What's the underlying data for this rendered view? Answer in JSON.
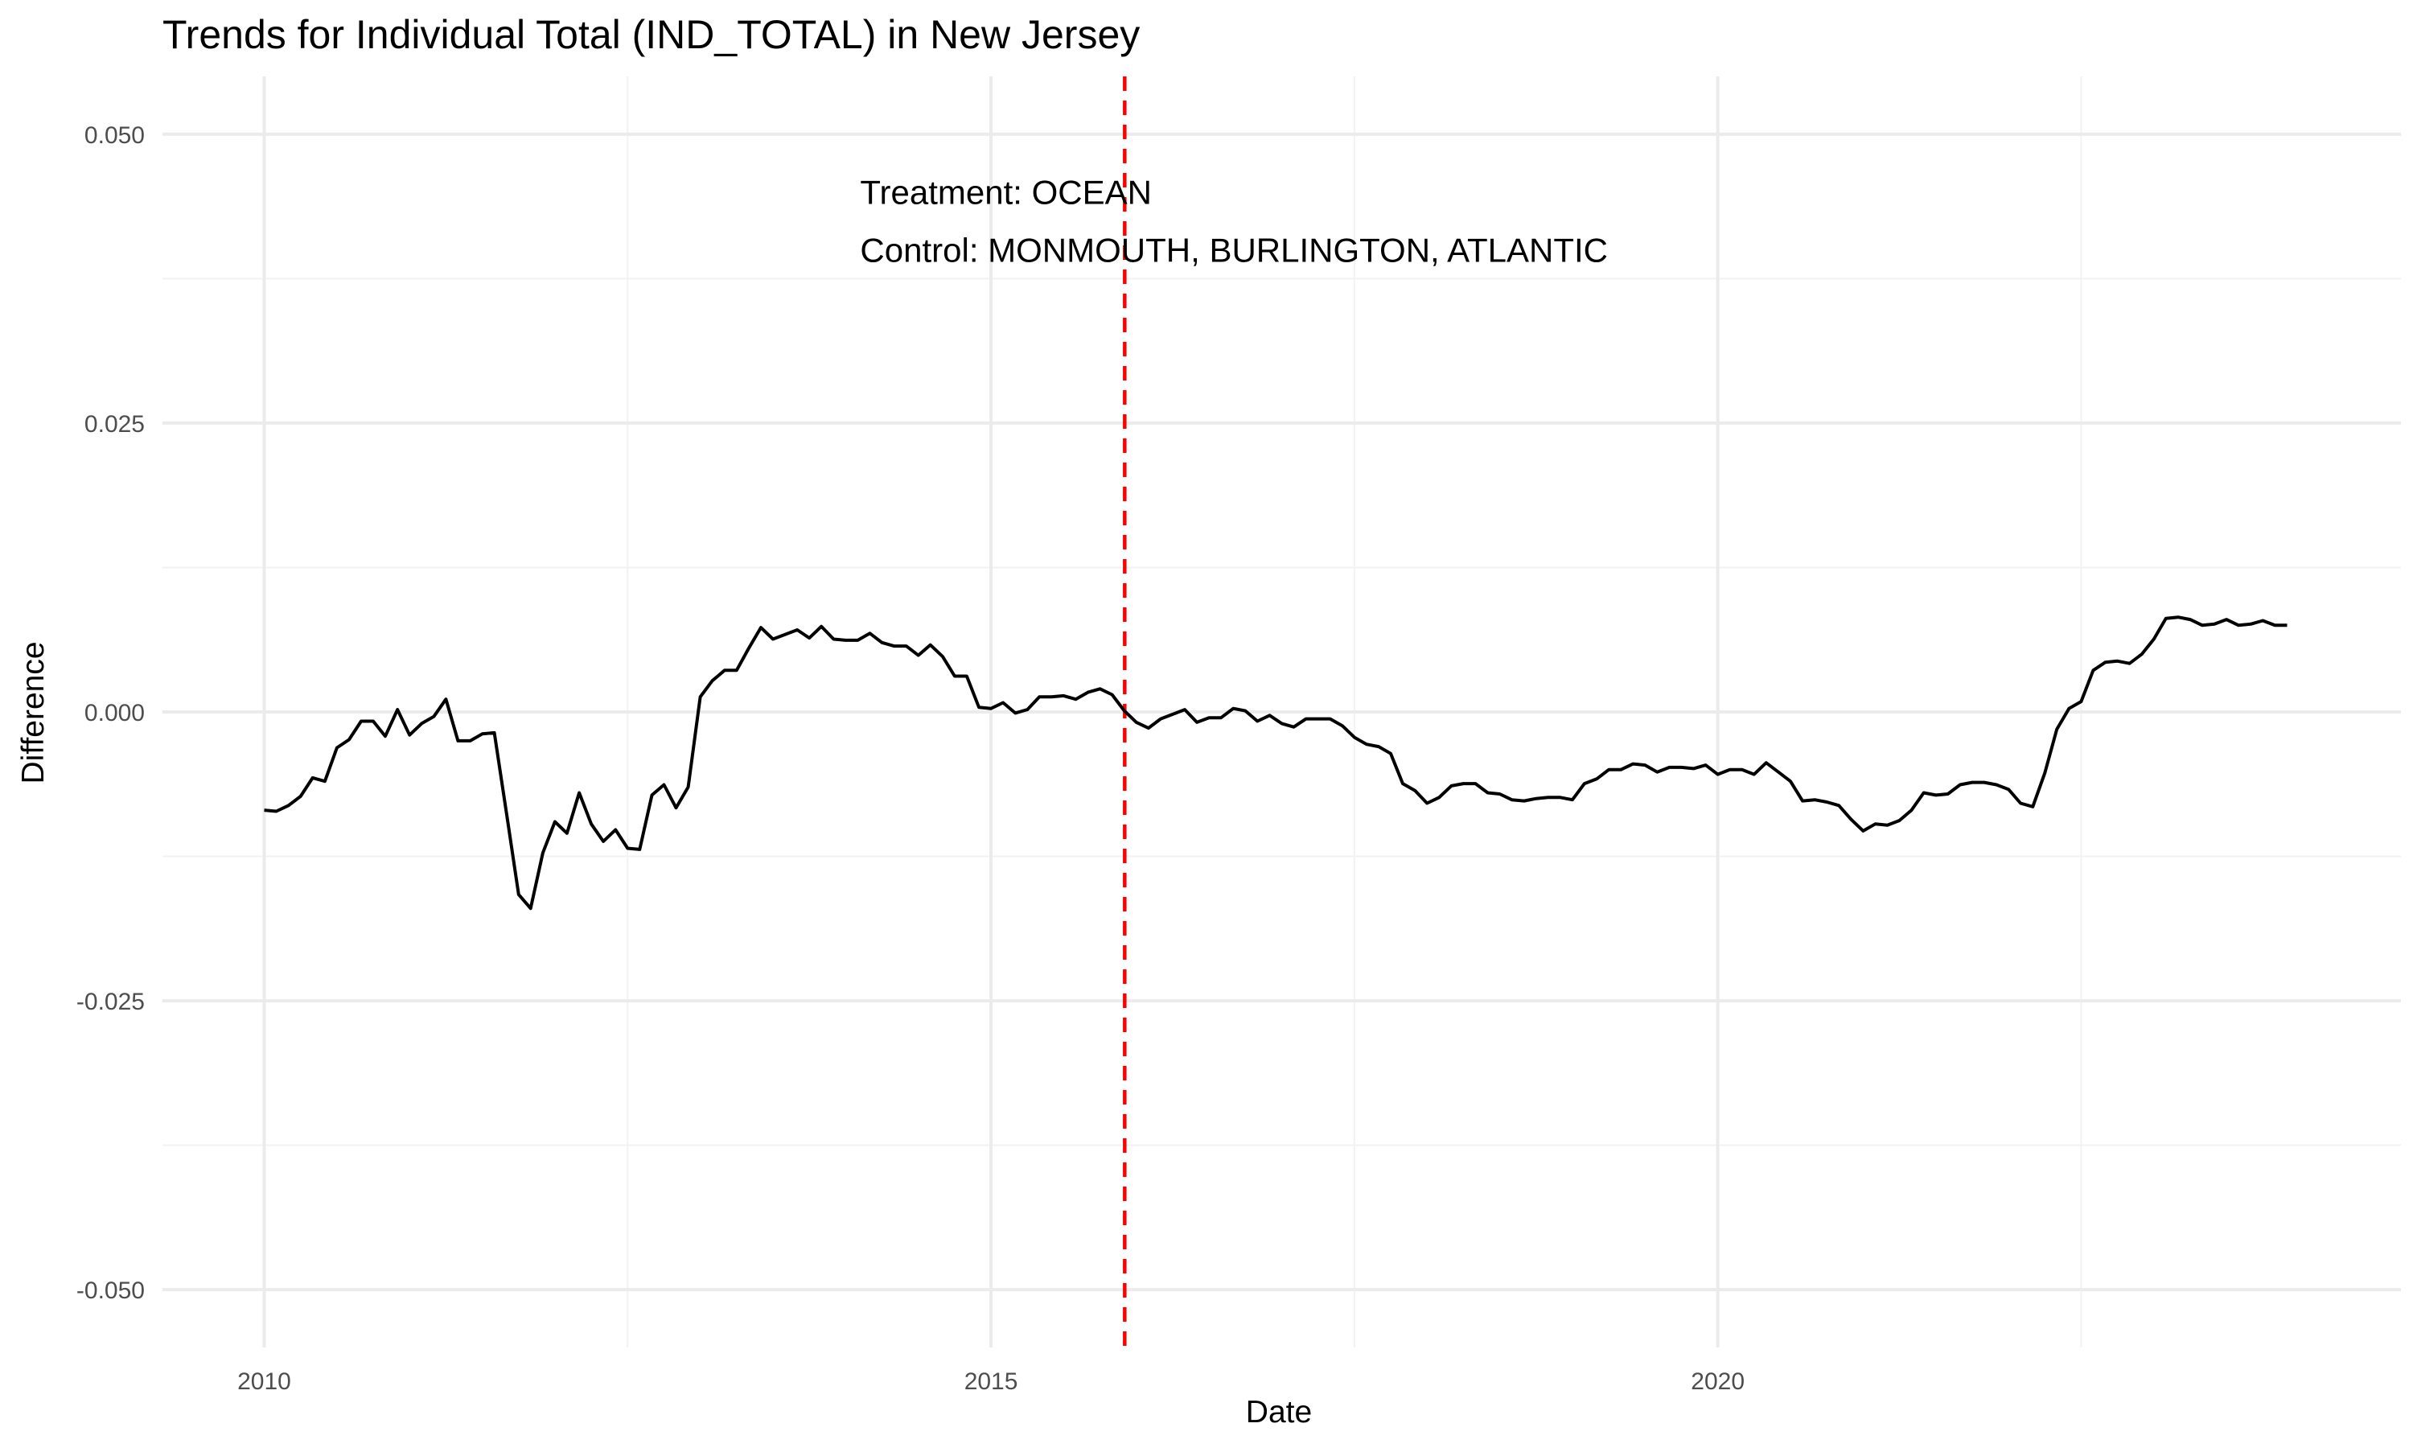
{
  "chart_data": {
    "type": "line",
    "title": "Trends for Individual Total (IND_TOTAL) in New Jersey",
    "xlabel": "Date",
    "ylabel": "Difference",
    "x_ticks": [
      2010,
      2015,
      2020
    ],
    "x_tick_labels": [
      "2010",
      "2015",
      "2020"
    ],
    "y_ticks": [
      -0.05,
      -0.025,
      0,
      0.025,
      0.05
    ],
    "y_tick_labels": [
      "-0.050",
      "-0.025",
      "0.000",
      "0.025",
      "0.050"
    ],
    "xlim": [
      2009.3,
      2024.7
    ],
    "ylim": [
      -0.055,
      0.055
    ],
    "grid": true,
    "legend": "none",
    "treatment_date": 2015.92,
    "line_color": "#000000",
    "treatment_line_color": "#ff0000",
    "annotations": [
      {
        "text": "Treatment: OCEAN",
        "x": 2014.1,
        "y": 0.045
      },
      {
        "text": "Control: MONMOUTH, BURLINGTON, ATLANTIC",
        "x": 2014.1,
        "y": 0.04
      }
    ],
    "series": [
      {
        "x": [
          2010.0,
          2010.083,
          2010.167,
          2010.25,
          2010.333,
          2010.417,
          2010.5,
          2010.583,
          2010.667,
          2010.75,
          2010.833,
          2010.917,
          2011.0,
          2011.083,
          2011.167,
          2011.25,
          2011.333,
          2011.417,
          2011.5,
          2011.583,
          2011.667,
          2011.75,
          2011.833,
          2011.917,
          2012.0,
          2012.083,
          2012.167,
          2012.25,
          2012.333,
          2012.417,
          2012.5,
          2012.583,
          2012.667,
          2012.75,
          2012.833,
          2012.917,
          2013.0,
          2013.083,
          2013.167,
          2013.25,
          2013.333,
          2013.417,
          2013.5,
          2013.583,
          2013.667,
          2013.75,
          2013.833,
          2013.917,
          2014.0,
          2014.083,
          2014.167,
          2014.25,
          2014.333,
          2014.417,
          2014.5,
          2014.583,
          2014.667,
          2014.75,
          2014.833,
          2014.917,
          2015.0,
          2015.083,
          2015.167,
          2015.25,
          2015.333,
          2015.417,
          2015.5,
          2015.583,
          2015.667,
          2015.75,
          2015.833,
          2015.917,
          2016.0,
          2016.083,
          2016.167,
          2016.25,
          2016.333,
          2016.417,
          2016.5,
          2016.583,
          2016.667,
          2016.75,
          2016.833,
          2016.917,
          2017.0,
          2017.083,
          2017.167,
          2017.25,
          2017.333,
          2017.417,
          2017.5,
          2017.583,
          2017.667,
          2017.75,
          2017.833,
          2017.917,
          2018.0,
          2018.083,
          2018.167,
          2018.25,
          2018.333,
          2018.417,
          2018.5,
          2018.583,
          2018.667,
          2018.75,
          2018.833,
          2018.917,
          2019.0,
          2019.083,
          2019.167,
          2019.25,
          2019.333,
          2019.417,
          2019.5,
          2019.583,
          2019.667,
          2019.75,
          2019.833,
          2019.917,
          2020.0,
          2020.083,
          2020.167,
          2020.25,
          2020.333,
          2020.417,
          2020.5,
          2020.583,
          2020.667,
          2020.75,
          2020.833,
          2020.917,
          2021.0,
          2021.083,
          2021.167,
          2021.25,
          2021.333,
          2021.417,
          2021.5,
          2021.583,
          2021.667,
          2021.75,
          2021.833,
          2021.917,
          2022.0,
          2022.083,
          2022.167,
          2022.25,
          2022.333,
          2022.417,
          2022.5,
          2022.583,
          2022.667,
          2022.75,
          2022.833,
          2022.917,
          2023.0,
          2023.083,
          2023.167,
          2023.25,
          2023.333,
          2023.417,
          2023.5,
          2023.583,
          2023.667,
          2023.75,
          2023.833,
          2023.917
        ],
        "values": [
          -0.0085,
          -0.0086,
          -0.0081,
          -0.0073,
          -0.0057,
          -0.006,
          -0.0031,
          -0.0024,
          -0.0008,
          -0.0008,
          -0.0021,
          0.0002,
          -0.002,
          -0.001,
          -0.0004,
          0.0011,
          -0.0025,
          -0.0025,
          -0.0019,
          -0.0018,
          -0.0088,
          -0.0158,
          -0.017,
          -0.0122,
          -0.0095,
          -0.0105,
          -0.007,
          -0.0097,
          -0.0112,
          -0.0102,
          -0.0118,
          -0.0119,
          -0.0072,
          -0.0063,
          -0.0083,
          -0.0065,
          0.0013,
          0.0027,
          0.0036,
          0.0036,
          0.0055,
          0.0073,
          0.0063,
          0.0067,
          0.0071,
          0.0064,
          0.0074,
          0.0063,
          0.0062,
          0.0062,
          0.0068,
          0.006,
          0.0057,
          0.0057,
          0.0049,
          0.0058,
          0.0048,
          0.0031,
          0.0031,
          0.0004,
          0.0003,
          0.0008,
          -0.0001,
          0.0002,
          0.0013,
          0.0013,
          0.0014,
          0.0011,
          0.0017,
          0.002,
          0.0015,
          0.0001,
          -0.0009,
          -0.0014,
          -0.0006,
          -0.0002,
          0.0002,
          -0.0009,
          -0.0005,
          -0.0005,
          0.0003,
          0.0001,
          -0.0008,
          -0.0003,
          -0.001,
          -0.0013,
          -0.0006,
          -0.0006,
          -0.0006,
          -0.0012,
          -0.0022,
          -0.0028,
          -0.003,
          -0.0036,
          -0.0062,
          -0.0068,
          -0.0079,
          -0.0074,
          -0.0064,
          -0.0062,
          -0.0062,
          -0.007,
          -0.0071,
          -0.0076,
          -0.0077,
          -0.0075,
          -0.0074,
          -0.0074,
          -0.0076,
          -0.0062,
          -0.0058,
          -0.005,
          -0.005,
          -0.0045,
          -0.0046,
          -0.0052,
          -0.0048,
          -0.0048,
          -0.0049,
          -0.0046,
          -0.0054,
          -0.005,
          -0.005,
          -0.0054,
          -0.0044,
          -0.0052,
          -0.006,
          -0.0077,
          -0.0076,
          -0.0078,
          -0.0081,
          -0.0093,
          -0.0103,
          -0.0097,
          -0.0098,
          -0.0094,
          -0.0085,
          -0.007,
          -0.0072,
          -0.0071,
          -0.0063,
          -0.0061,
          -0.0061,
          -0.0063,
          -0.0067,
          -0.0079,
          -0.0082,
          -0.0053,
          -0.0015,
          0.0003,
          0.0009,
          0.0036,
          0.0043,
          0.0044,
          0.0042,
          0.005,
          0.0063,
          0.0081,
          0.0082,
          0.008,
          0.0075,
          0.0076,
          0.008,
          0.0075,
          0.0076,
          0.0079,
          0.0075,
          0.0075
        ]
      }
    ]
  }
}
